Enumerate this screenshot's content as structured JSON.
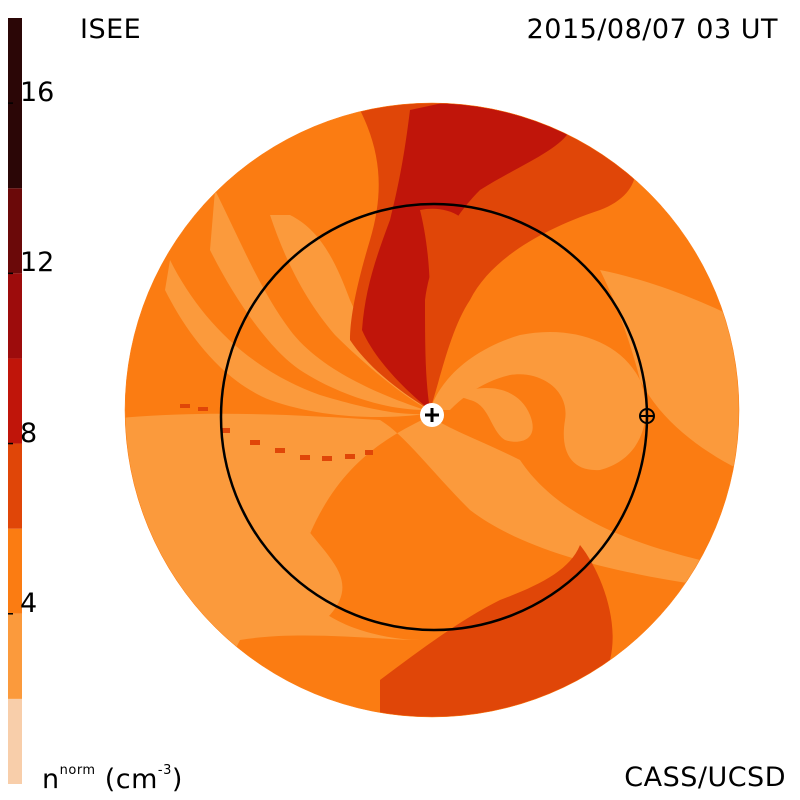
{
  "header": {
    "title": "ISEE",
    "datetime": "2015/08/07 03 UT",
    "credit": "CASS/UCSD"
  },
  "colorbar": {
    "unit_symbol": "n",
    "unit_superscript": "norm",
    "unit_text": "(cm",
    "unit_exponent": "-3",
    "unit_close": ")",
    "ticks": [
      "4",
      "8",
      "12",
      "16"
    ],
    "bands": [
      {
        "min": 0,
        "max": 2,
        "color": "#f8ceaa"
      },
      {
        "min": 2,
        "max": 4,
        "color": "#fb9a3c"
      },
      {
        "min": 4,
        "max": 6,
        "color": "#fb7c12"
      },
      {
        "min": 6,
        "max": 8,
        "color": "#e04608"
      },
      {
        "min": 8,
        "max": 10,
        "color": "#c0150a"
      },
      {
        "min": 10,
        "max": 12,
        "color": "#9d0c0c"
      },
      {
        "min": 12,
        "max": 14,
        "color": "#6b0909"
      },
      {
        "min": 14,
        "max": 18,
        "color": "#2b0606"
      }
    ]
  },
  "chart_data": {
    "type": "heatmap",
    "title": "ISEE",
    "subtitle": "2015/08/07 03 UT",
    "colorbar_label": "n norm (cm-3)",
    "colorbar_range": [
      0,
      18
    ],
    "colorbar_ticks": [
      4,
      8,
      12,
      16
    ],
    "markers": [
      {
        "symbol": "+",
        "meaning": "Sun"
      },
      {
        "symbol": "⊕",
        "meaning": "Earth"
      }
    ],
    "reference_circle": "Earth orbit",
    "regions": [
      {
        "name": "northern-high-density-stream",
        "value_range": [
          8,
          10
        ]
      },
      {
        "name": "southern-enhanced-region",
        "value_range": [
          6,
          8
        ]
      },
      {
        "name": "background",
        "value_range": [
          2,
          6
        ]
      }
    ]
  },
  "colors": {
    "background": "#ffffff",
    "orbit": "#000000"
  },
  "icons": {
    "sun": "sun-marker-icon",
    "earth": "earth-marker-icon"
  }
}
